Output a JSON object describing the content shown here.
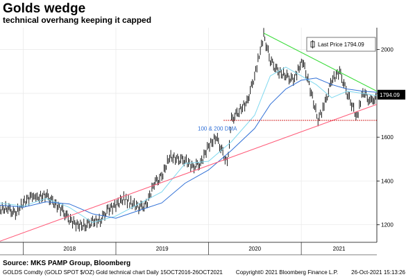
{
  "title": "Golds wedge",
  "subtitle": "technical overhang keeping it capped",
  "source": "Source: MKS PAMP Group, Bloomberg",
  "footer": {
    "left": "GOLDS Comdty (GOLD SPOT $/OZ) Gold technical chart  Daily 15OCT2016-26OCT2021",
    "middle": "Copyright© 2021 Bloomberg Finance L.P.",
    "right": "26-Oct-2021 15:13:26"
  },
  "colors": {
    "price": "#000000",
    "dma100": "#7fd8ef",
    "dma200": "#2f6fd6",
    "resistance": "#3cdc3c",
    "support": "#ff5a78",
    "horizontal": "#cc0000",
    "grid": "#e8e8e8"
  },
  "chart_data": {
    "type": "line",
    "title": "Golds wedge",
    "subtitle": "technical overhang keeping it capped",
    "x_range": [
      "2017-10-01",
      "2021-10-26"
    ],
    "xticks": [
      "2018",
      "2019",
      "2020",
      "2021"
    ],
    "yticks": [
      1200,
      1400,
      1600,
      1800,
      2000
    ],
    "ylim": [
      1120,
      2100
    ],
    "grid": true,
    "legend": {
      "position": "top-right",
      "entries": [
        "Last Price 1794.09"
      ]
    },
    "last_price": {
      "label": "1794.09",
      "value": 1794.09
    },
    "annotation": "100 & 200 DMA",
    "series": [
      {
        "name": "Last Price",
        "style": "ohlc",
        "points": [
          [
            "2017-10-01",
            1270
          ],
          [
            "2017-11-01",
            1275
          ],
          [
            "2017-12-01",
            1250
          ],
          [
            "2018-01-01",
            1300
          ],
          [
            "2018-02-01",
            1330
          ],
          [
            "2018-03-01",
            1325
          ],
          [
            "2018-04-01",
            1335
          ],
          [
            "2018-05-01",
            1300
          ],
          [
            "2018-06-01",
            1270
          ],
          [
            "2018-07-01",
            1225
          ],
          [
            "2018-08-01",
            1200
          ],
          [
            "2018-09-01",
            1195
          ],
          [
            "2018-10-01",
            1215
          ],
          [
            "2018-11-01",
            1220
          ],
          [
            "2018-12-01",
            1270
          ],
          [
            "2019-01-01",
            1290
          ],
          [
            "2019-02-01",
            1320
          ],
          [
            "2019-03-01",
            1300
          ],
          [
            "2019-04-01",
            1280
          ],
          [
            "2019-05-01",
            1290
          ],
          [
            "2019-06-01",
            1390
          ],
          [
            "2019-07-01",
            1420
          ],
          [
            "2019-08-01",
            1510
          ],
          [
            "2019-09-01",
            1500
          ],
          [
            "2019-10-01",
            1495
          ],
          [
            "2019-11-01",
            1465
          ],
          [
            "2019-12-01",
            1480
          ],
          [
            "2020-01-01",
            1560
          ],
          [
            "2020-02-01",
            1600
          ],
          [
            "2020-03-15",
            1480
          ],
          [
            "2020-04-01",
            1680
          ],
          [
            "2020-05-01",
            1720
          ],
          [
            "2020-06-01",
            1760
          ],
          [
            "2020-07-01",
            1880
          ],
          [
            "2020-08-06",
            2065
          ],
          [
            "2020-09-01",
            1950
          ],
          [
            "2020-10-01",
            1900
          ],
          [
            "2020-11-01",
            1880
          ],
          [
            "2020-12-01",
            1860
          ],
          [
            "2021-01-06",
            1950
          ],
          [
            "2021-02-01",
            1840
          ],
          [
            "2021-03-08",
            1680
          ],
          [
            "2021-04-01",
            1740
          ],
          [
            "2021-05-01",
            1860
          ],
          [
            "2021-06-01",
            1900
          ],
          [
            "2021-07-01",
            1800
          ],
          [
            "2021-08-09",
            1690
          ],
          [
            "2021-09-01",
            1810
          ],
          [
            "2021-10-01",
            1760
          ],
          [
            "2021-10-26",
            1794.09
          ]
        ]
      },
      {
        "name": "100 DMA",
        "points": [
          [
            "2017-10-01",
            1300
          ],
          [
            "2018-01-01",
            1285
          ],
          [
            "2018-04-01",
            1320
          ],
          [
            "2018-07-01",
            1280
          ],
          [
            "2018-10-01",
            1210
          ],
          [
            "2019-01-01",
            1240
          ],
          [
            "2019-04-01",
            1295
          ],
          [
            "2019-07-01",
            1350
          ],
          [
            "2019-10-01",
            1480
          ],
          [
            "2020-01-01",
            1490
          ],
          [
            "2020-04-01",
            1580
          ],
          [
            "2020-07-01",
            1700
          ],
          [
            "2020-09-01",
            1880
          ],
          [
            "2020-11-01",
            1920
          ],
          [
            "2021-01-01",
            1880
          ],
          [
            "2021-03-01",
            1840
          ],
          [
            "2021-05-01",
            1780
          ],
          [
            "2021-07-01",
            1810
          ],
          [
            "2021-09-01",
            1800
          ],
          [
            "2021-10-26",
            1790
          ]
        ]
      },
      {
        "name": "200 DMA",
        "points": [
          [
            "2017-10-01",
            1290
          ],
          [
            "2018-01-01",
            1280
          ],
          [
            "2018-04-01",
            1305
          ],
          [
            "2018-07-01",
            1295
          ],
          [
            "2018-10-01",
            1250
          ],
          [
            "2019-01-01",
            1230
          ],
          [
            "2019-04-01",
            1265
          ],
          [
            "2019-07-01",
            1300
          ],
          [
            "2019-10-01",
            1390
          ],
          [
            "2020-01-01",
            1450
          ],
          [
            "2020-04-01",
            1540
          ],
          [
            "2020-07-01",
            1640
          ],
          [
            "2020-09-01",
            1750
          ],
          [
            "2020-11-01",
            1820
          ],
          [
            "2021-01-01",
            1860
          ],
          [
            "2021-03-01",
            1870
          ],
          [
            "2021-05-01",
            1840
          ],
          [
            "2021-07-01",
            1820
          ],
          [
            "2021-09-01",
            1810
          ],
          [
            "2021-10-26",
            1805
          ]
        ]
      }
    ],
    "trendlines": [
      {
        "name": "resistance",
        "from": [
          "2020-08-06",
          2075
        ],
        "to": [
          "2021-10-26",
          1810
        ]
      },
      {
        "name": "support",
        "from": [
          "2017-10-01",
          1125
        ],
        "to": [
          "2021-10-26",
          1750
        ]
      },
      {
        "name": "horizontal",
        "from": [
          "2020-03-01",
          1677
        ],
        "to": [
          "2021-10-26",
          1677
        ]
      }
    ]
  }
}
